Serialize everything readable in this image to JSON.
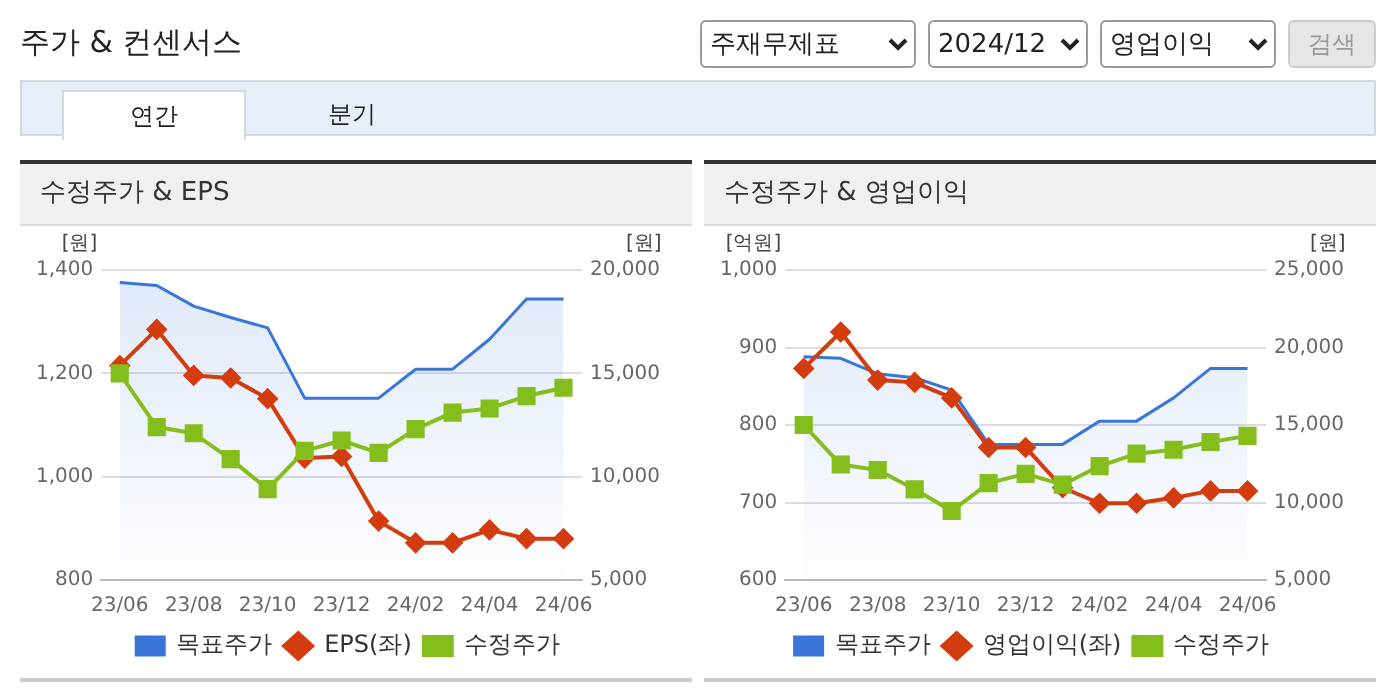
{
  "chart_data": [
    {
      "type": "other",
      "title": "주가 & 컨센서스",
      "annotations": [
        "주재무제표",
        "2024/12",
        "영업이익",
        "검색",
        "연간",
        "분기"
      ]
    },
    {
      "type": "line",
      "title": "수정주가 & EPS",
      "ylabel": "[원]",
      "y2label": "[원]",
      "categories": [
        "23/06",
        null,
        "23/08",
        null,
        "23/10",
        null,
        "23/12",
        null,
        "24/02",
        null,
        "24/04",
        null,
        "24/06"
      ],
      "series": [
        {
          "name": "목표주가",
          "type": "area",
          "axis": "y2",
          "color": "#3a76d8",
          "marker": "none",
          "values": [
            19400,
            19250,
            18250,
            17700,
            17200,
            13800,
            13800,
            13800,
            15200,
            15200,
            16650,
            18600,
            18600
          ]
        },
        {
          "name": "EPS(좌)",
          "type": "line",
          "color": "#d23c0e",
          "marker": "diamond",
          "values": [
            1215,
            1285,
            1196,
            1191,
            1151,
            1036,
            1039,
            914,
            872,
            872,
            897,
            880,
            880
          ]
        },
        {
          "name": "수정주가",
          "type": "line",
          "axis": "y2",
          "color": "#84bd1c",
          "marker": "square",
          "values": [
            15000,
            12400,
            12100,
            10850,
            9400,
            11250,
            11750,
            11150,
            12300,
            13100,
            13300,
            13900,
            14300
          ]
        }
      ],
      "ylim": [
        800,
        1400
      ],
      "yticks": [
        {
          "value": 800,
          "label": "800"
        },
        {
          "value": 1000,
          "label": "1,000"
        },
        {
          "value": 1200,
          "label": "1,200"
        },
        {
          "value": 1400,
          "label": "1,400"
        }
      ],
      "y2lim": [
        5000,
        20000
      ],
      "y2ticks": [
        {
          "value": 5000,
          "label": "5,000"
        },
        {
          "value": 10000,
          "label": "10,000"
        },
        {
          "value": 15000,
          "label": "15,000"
        },
        {
          "value": 20000,
          "label": "20,000"
        }
      ],
      "grid": "y",
      "legend": "bottom"
    },
    {
      "type": "line",
      "title": "수정주가 & 영업이익",
      "ylabel": "[억원]",
      "y2label": "[원]",
      "categories": [
        "23/06",
        null,
        "23/08",
        null,
        "23/10",
        null,
        "23/12",
        null,
        "24/02",
        null,
        "24/04",
        null,
        "24/06"
      ],
      "series": [
        {
          "name": "목표주가",
          "type": "area",
          "axis": "y2",
          "color": "#3a76d8",
          "marker": "none",
          "values": [
            19400,
            19300,
            18300,
            18050,
            17250,
            13750,
            13750,
            13750,
            15250,
            15250,
            16750,
            18650,
            18650
          ]
        },
        {
          "name": "영업이익(좌)",
          "type": "line",
          "color": "#d23c0e",
          "marker": "diamond",
          "values": [
            873,
            920,
            858,
            855,
            835,
            771,
            771,
            719,
            699,
            699,
            706,
            715,
            715
          ]
        },
        {
          "name": "수정주가",
          "type": "line",
          "axis": "y2",
          "color": "#84bd1c",
          "marker": "square",
          "values": [
            15000,
            12450,
            12100,
            10850,
            9450,
            11250,
            11850,
            11150,
            12350,
            13150,
            13400,
            13900,
            14300
          ]
        }
      ],
      "ylim": [
        600,
        1000
      ],
      "yticks": [
        {
          "value": 600,
          "label": "600"
        },
        {
          "value": 700,
          "label": "700"
        },
        {
          "value": 800,
          "label": "800"
        },
        {
          "value": 900,
          "label": "900"
        },
        {
          "value": 1000,
          "label": "1,000"
        }
      ],
      "y2lim": [
        5000,
        25000
      ],
      "y2ticks": [
        {
          "value": 5000,
          "label": "5,000"
        },
        {
          "value": 10000,
          "label": "10,000"
        },
        {
          "value": 15000,
          "label": "15,000"
        },
        {
          "value": 20000,
          "label": "20,000"
        },
        {
          "value": 25000,
          "label": "25,000"
        }
      ],
      "grid": "y",
      "legend": "bottom"
    }
  ]
}
